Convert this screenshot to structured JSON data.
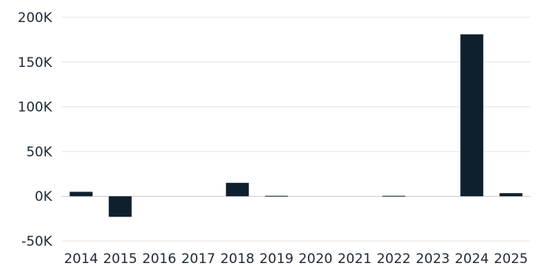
{
  "chart_data": {
    "type": "bar",
    "title": "",
    "xlabel": "",
    "ylabel": "",
    "categories": [
      "2014",
      "2015",
      "2016",
      "2017",
      "2018",
      "2019",
      "2020",
      "2021",
      "2022",
      "2023",
      "2024",
      "2025"
    ],
    "values": [
      5000,
      -23000,
      0,
      0,
      15000,
      500,
      0,
      0,
      500,
      0,
      181000,
      3500
    ],
    "ylim": [
      -50000,
      200000
    ],
    "yticks": [
      200000,
      150000,
      100000,
      50000,
      0,
      -50000
    ],
    "ytick_labels": [
      "200K",
      "150K",
      "100K",
      "50K",
      "0K",
      "-50K"
    ],
    "grid": true,
    "bar_color": "#0f1f2e"
  }
}
